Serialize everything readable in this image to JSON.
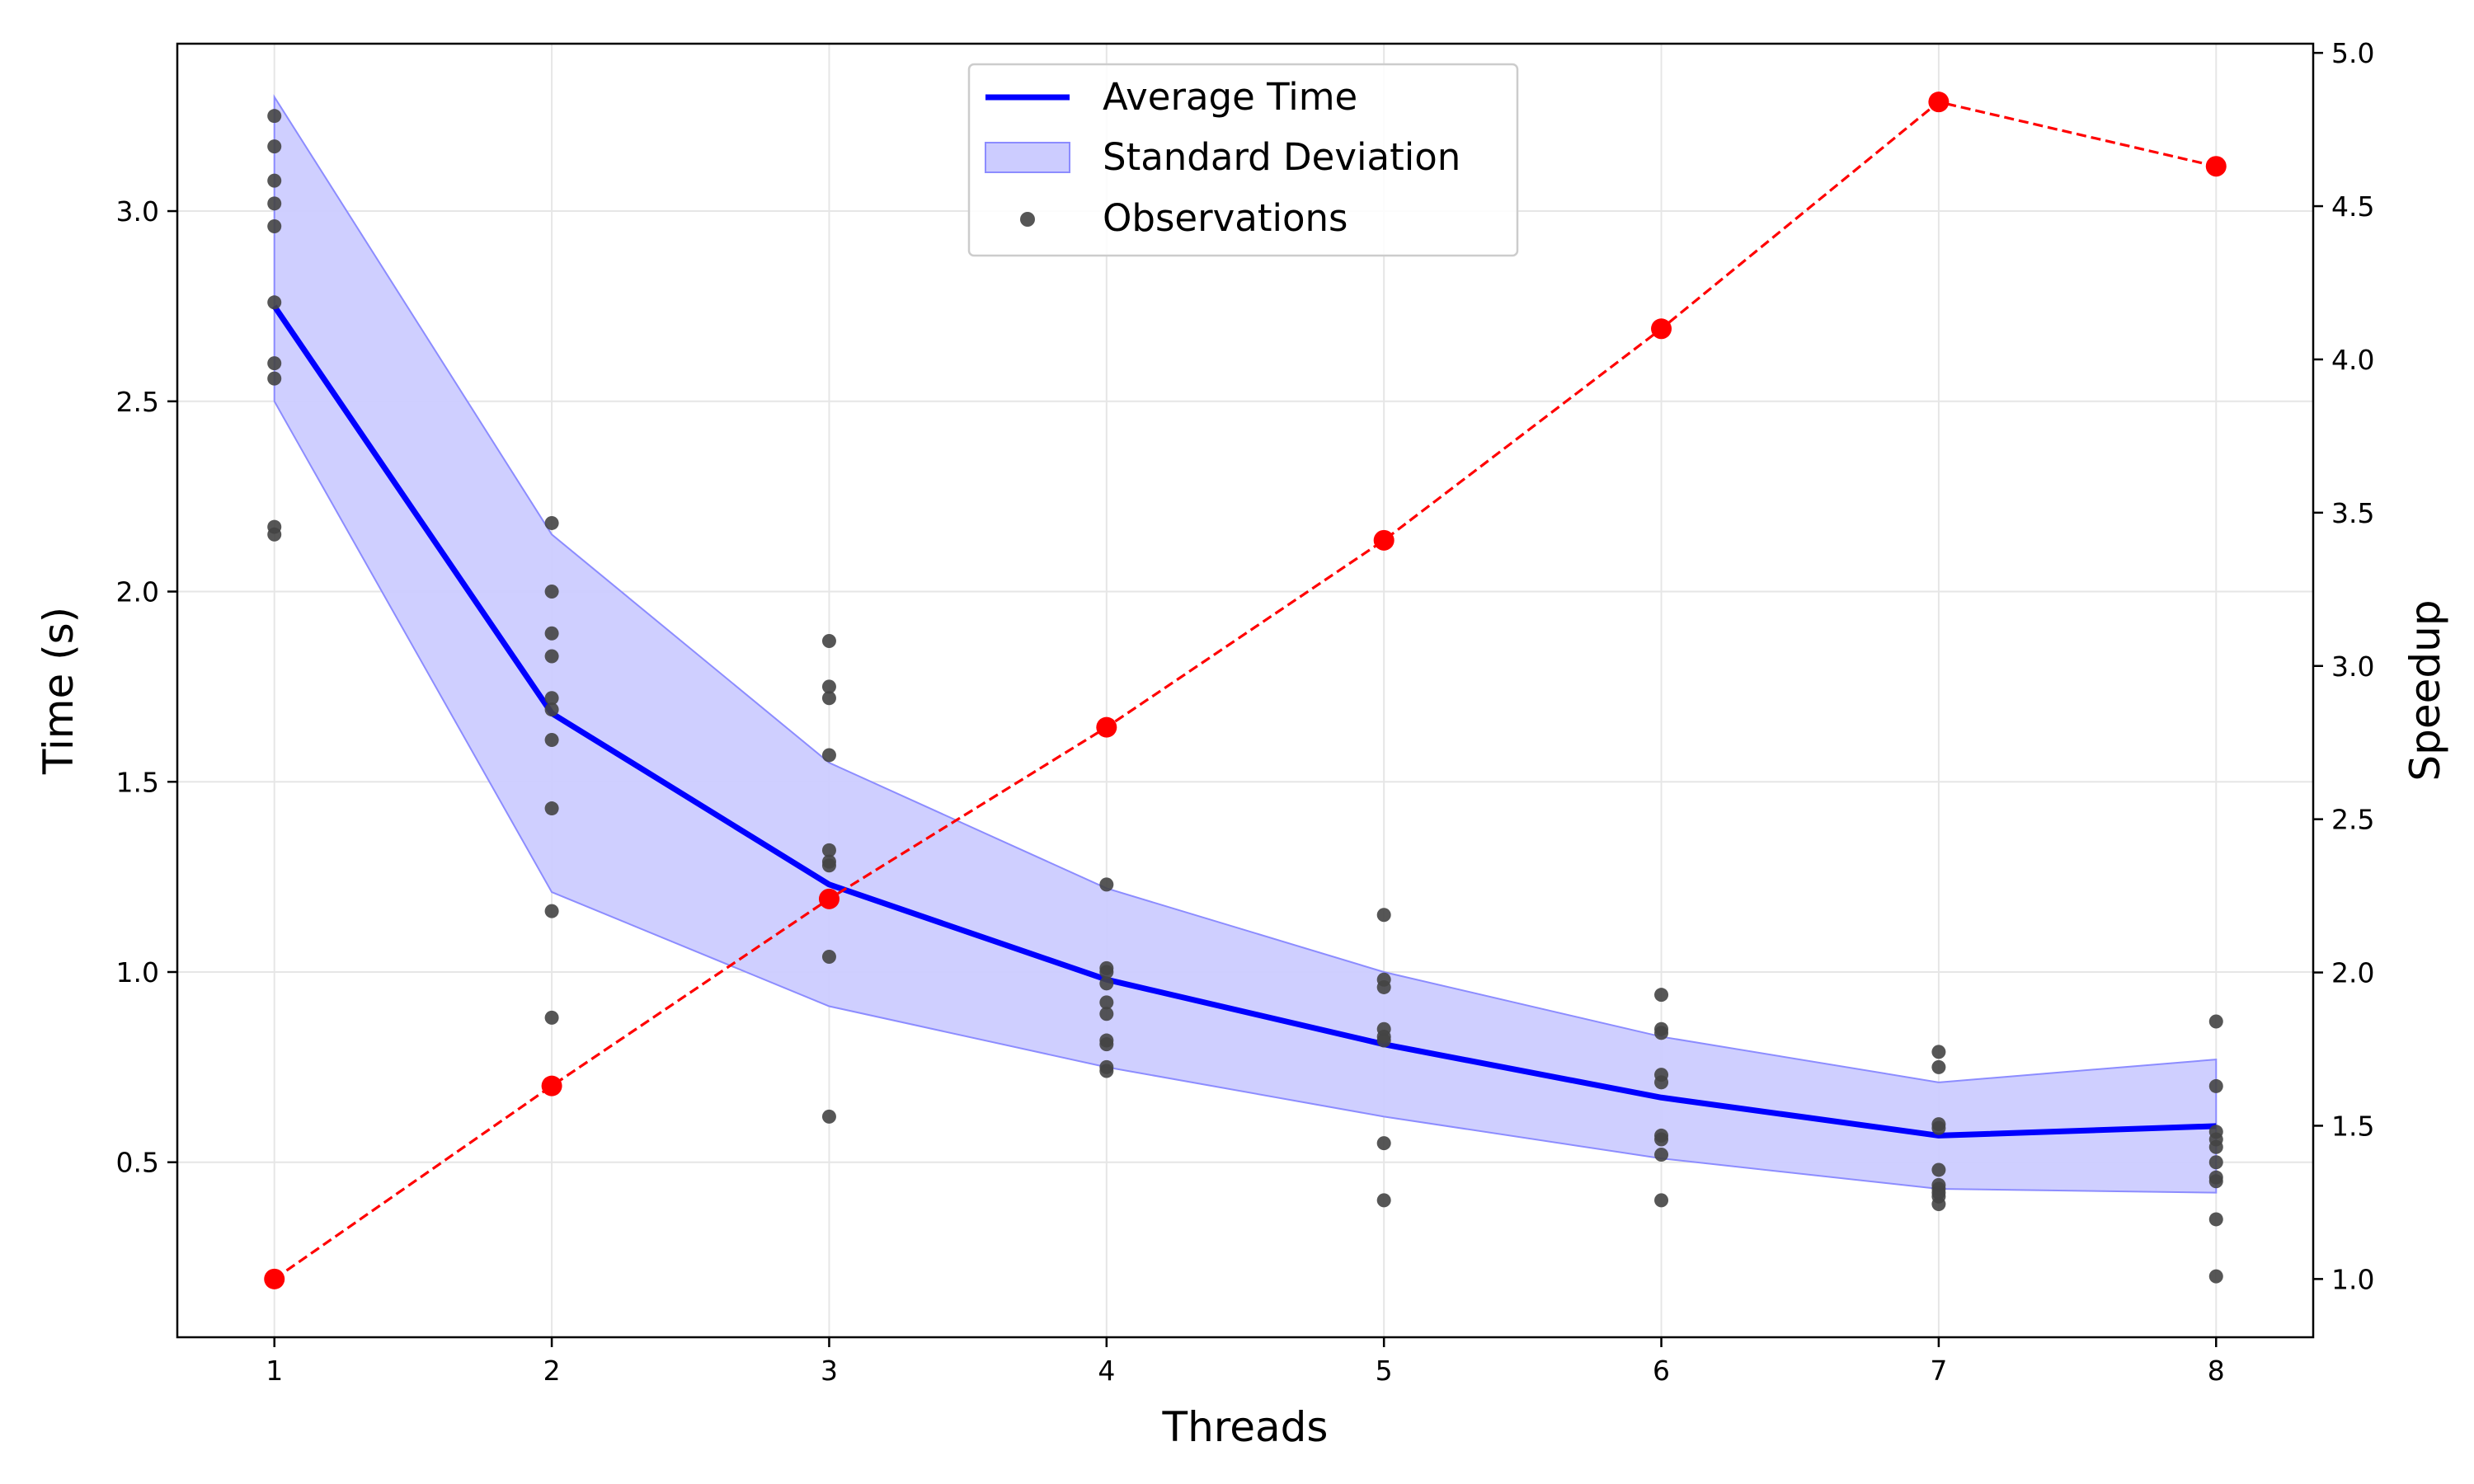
{
  "chart_data": {
    "type": "line",
    "x": [
      1,
      2,
      3,
      4,
      5,
      6,
      7,
      8
    ],
    "xlabel": "Threads",
    "ylabel": "Time (s)",
    "y2label": "Speedup",
    "xticks": [
      "1",
      "2",
      "3",
      "4",
      "5",
      "6",
      "7",
      "8"
    ],
    "yticks": [
      "0.5",
      "1.0",
      "1.5",
      "2.0",
      "2.5",
      "3.0"
    ],
    "y2ticks": [
      "1.0",
      "1.5",
      "2.0",
      "2.5",
      "3.0",
      "3.5",
      "4.0",
      "4.5",
      "5.0"
    ],
    "xlim": [
      0.65,
      8.35
    ],
    "ylim": [
      0.04,
      3.44
    ],
    "y2lim": [
      0.81,
      5.03
    ],
    "grid": true,
    "legend_position": "top-center",
    "colors": {
      "average": "#0000ff",
      "std_fill": "#ccccff",
      "std_edge": "#8c8cff",
      "observations": "#444444",
      "speedup": "#ff0000",
      "grid": "#e6e6e6"
    },
    "series": [
      {
        "name": "Average Time",
        "axis": "left",
        "style": "solid-line",
        "values": [
          2.75,
          1.68,
          1.23,
          0.98,
          0.81,
          0.67,
          0.57,
          0.595
        ]
      },
      {
        "name": "Standard Deviation",
        "axis": "left",
        "style": "band",
        "upper": [
          3.3,
          2.15,
          1.55,
          1.22,
          1.0,
          0.83,
          0.71,
          0.77
        ],
        "lower": [
          2.5,
          1.21,
          0.91,
          0.75,
          0.62,
          0.51,
          0.43,
          0.42
        ]
      },
      {
        "axis": "right",
        "style": "dashed-line-markers",
        "values": [
          1.0,
          1.63,
          2.24,
          2.8,
          3.41,
          4.1,
          4.84,
          4.63
        ]
      }
    ],
    "observations": {
      "name": "Observations",
      "points": [
        {
          "x": 1,
          "y": 3.25
        },
        {
          "x": 1,
          "y": 3.17
        },
        {
          "x": 1,
          "y": 3.08
        },
        {
          "x": 1,
          "y": 3.02
        },
        {
          "x": 1,
          "y": 2.96
        },
        {
          "x": 1,
          "y": 2.76
        },
        {
          "x": 1,
          "y": 2.6
        },
        {
          "x": 1,
          "y": 2.56
        },
        {
          "x": 1,
          "y": 2.17
        },
        {
          "x": 1,
          "y": 2.15
        },
        {
          "x": 2,
          "y": 2.18
        },
        {
          "x": 2,
          "y": 2.0
        },
        {
          "x": 2,
          "y": 1.89
        },
        {
          "x": 2,
          "y": 1.83
        },
        {
          "x": 2,
          "y": 1.72
        },
        {
          "x": 2,
          "y": 1.69
        },
        {
          "x": 2,
          "y": 1.61
        },
        {
          "x": 2,
          "y": 1.43
        },
        {
          "x": 2,
          "y": 1.16
        },
        {
          "x": 2,
          "y": 0.88
        },
        {
          "x": 3,
          "y": 1.87
        },
        {
          "x": 3,
          "y": 1.75
        },
        {
          "x": 3,
          "y": 1.72
        },
        {
          "x": 3,
          "y": 1.57
        },
        {
          "x": 3,
          "y": 1.32
        },
        {
          "x": 3,
          "y": 1.29
        },
        {
          "x": 3,
          "y": 1.28
        },
        {
          "x": 3,
          "y": 1.04
        },
        {
          "x": 3,
          "y": 0.62
        },
        {
          "x": 4,
          "y": 1.23
        },
        {
          "x": 4,
          "y": 1.01
        },
        {
          "x": 4,
          "y": 1.0
        },
        {
          "x": 4,
          "y": 0.97
        },
        {
          "x": 4,
          "y": 0.92
        },
        {
          "x": 4,
          "y": 0.89
        },
        {
          "x": 4,
          "y": 0.82
        },
        {
          "x": 4,
          "y": 0.81
        },
        {
          "x": 4,
          "y": 0.75
        },
        {
          "x": 4,
          "y": 0.74
        },
        {
          "x": 5,
          "y": 1.15
        },
        {
          "x": 5,
          "y": 0.98
        },
        {
          "x": 5,
          "y": 0.96
        },
        {
          "x": 5,
          "y": 0.85
        },
        {
          "x": 5,
          "y": 0.83
        },
        {
          "x": 5,
          "y": 0.82
        },
        {
          "x": 5,
          "y": 0.55
        },
        {
          "x": 5,
          "y": 0.4
        },
        {
          "x": 6,
          "y": 0.94
        },
        {
          "x": 6,
          "y": 0.85
        },
        {
          "x": 6,
          "y": 0.84
        },
        {
          "x": 6,
          "y": 0.73
        },
        {
          "x": 6,
          "y": 0.71
        },
        {
          "x": 6,
          "y": 0.57
        },
        {
          "x": 6,
          "y": 0.56
        },
        {
          "x": 6,
          "y": 0.52
        },
        {
          "x": 6,
          "y": 0.4
        },
        {
          "x": 7,
          "y": 0.79
        },
        {
          "x": 7,
          "y": 0.75
        },
        {
          "x": 7,
          "y": 0.6
        },
        {
          "x": 7,
          "y": 0.59
        },
        {
          "x": 7,
          "y": 0.48
        },
        {
          "x": 7,
          "y": 0.44
        },
        {
          "x": 7,
          "y": 0.43
        },
        {
          "x": 7,
          "y": 0.42
        },
        {
          "x": 7,
          "y": 0.41
        },
        {
          "x": 7,
          "y": 0.39
        },
        {
          "x": 8,
          "y": 0.87
        },
        {
          "x": 8,
          "y": 0.7
        },
        {
          "x": 8,
          "y": 0.58
        },
        {
          "x": 8,
          "y": 0.56
        },
        {
          "x": 8,
          "y": 0.54
        },
        {
          "x": 8,
          "y": 0.5
        },
        {
          "x": 8,
          "y": 0.46
        },
        {
          "x": 8,
          "y": 0.45
        },
        {
          "x": 8,
          "y": 0.35
        },
        {
          "x": 8,
          "y": 0.2
        }
      ]
    },
    "legend": [
      "Average Time",
      "Standard Deviation",
      "Observations"
    ]
  }
}
